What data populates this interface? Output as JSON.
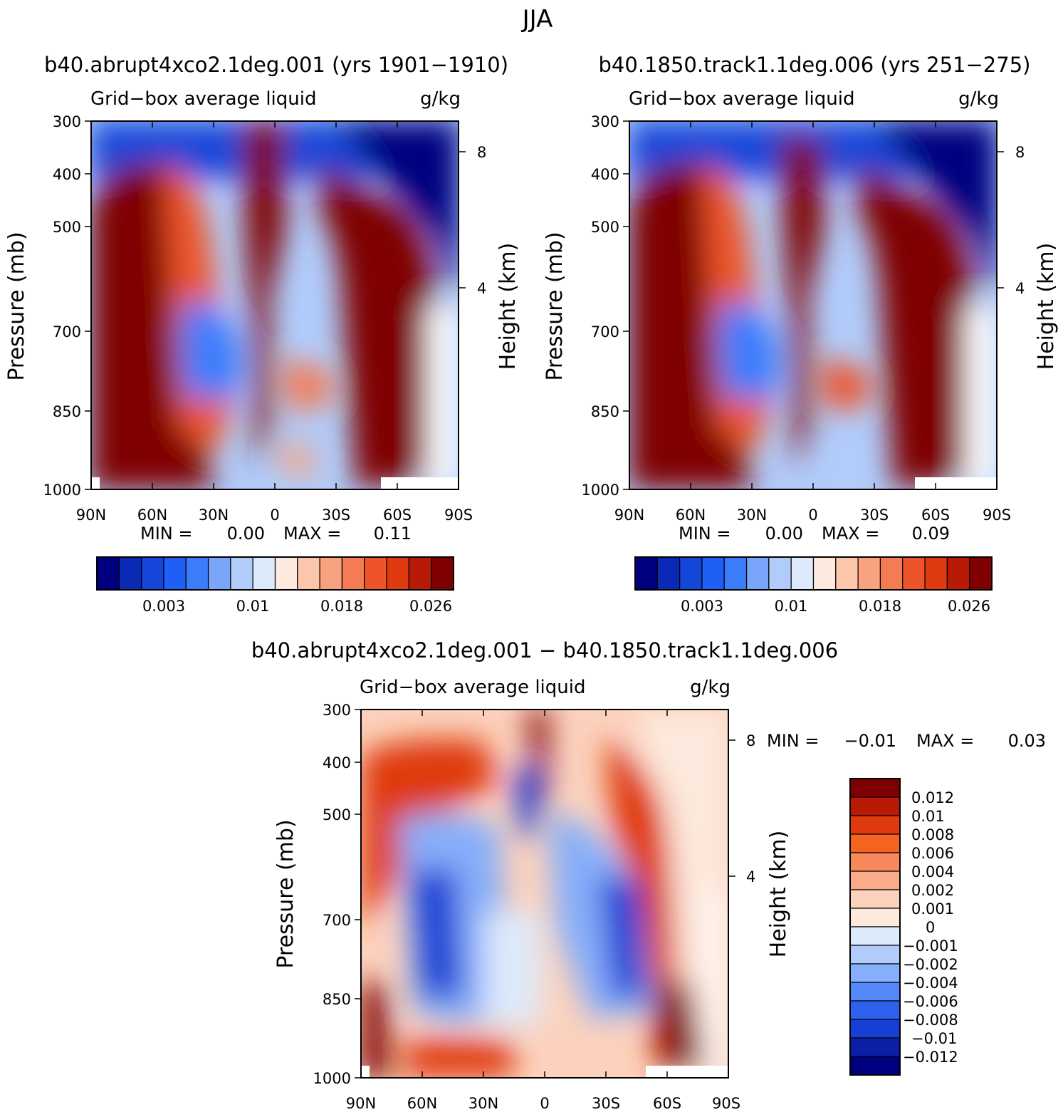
{
  "figure": {
    "title": "JJA"
  },
  "chart_data": [
    {
      "type": "heatmap",
      "panel": "top-left",
      "title": "b40.abrupt4xco2.1deg.001 (yrs 1901−1910)",
      "subtitle_left": "Grid−box average liquid",
      "subtitle_right": "g/kg",
      "xlabel": "",
      "ylabel": "Pressure (mb)",
      "ylabel_right": "Height (km)",
      "x_ticks": [
        "90N",
        "60N",
        "30N",
        "0",
        "30S",
        "60S",
        "90S"
      ],
      "y_ticks": [
        "300",
        "400",
        "500",
        "700",
        "850",
        "1000"
      ],
      "y_right_ticks": [
        "8",
        "4"
      ],
      "min_label": "MIN =",
      "min_value": "0.00",
      "max_label": "MAX =",
      "max_value": "0.11",
      "colorbar_labels": [
        "0.003",
        "0.01",
        "0.018",
        "0.026"
      ],
      "colorbar_orientation": "horizontal"
    },
    {
      "type": "heatmap",
      "panel": "top-right",
      "title": "b40.1850.track1.1deg.006 (yrs 251−275)",
      "subtitle_left": "Grid−box average liquid",
      "subtitle_right": "g/kg",
      "xlabel": "",
      "ylabel": "Pressure (mb)",
      "ylabel_right": "Height (km)",
      "x_ticks": [
        "90N",
        "60N",
        "30N",
        "0",
        "30S",
        "60S",
        "90S"
      ],
      "y_ticks": [
        "300",
        "400",
        "500",
        "700",
        "850",
        "1000"
      ],
      "y_right_ticks": [
        "8",
        "4"
      ],
      "min_label": "MIN =",
      "min_value": "0.00",
      "max_label": "MAX =",
      "max_value": "0.09",
      "colorbar_labels": [
        "0.003",
        "0.01",
        "0.018",
        "0.026"
      ],
      "colorbar_orientation": "horizontal"
    },
    {
      "type": "heatmap",
      "panel": "bottom",
      "title": "b40.abrupt4xco2.1deg.001 − b40.1850.track1.1deg.006",
      "subtitle_left": "Grid−box average liquid",
      "subtitle_right": "g/kg",
      "xlabel": "",
      "ylabel": "Pressure (mb)",
      "ylabel_right": "Height (km)",
      "x_ticks": [
        "90N",
        "60N",
        "30N",
        "0",
        "30S",
        "60S",
        "90S"
      ],
      "y_ticks": [
        "300",
        "400",
        "500",
        "700",
        "850",
        "1000"
      ],
      "y_right_ticks": [
        "8",
        "4"
      ],
      "min_label": "MIN =",
      "min_value": "−0.01",
      "max_label": "MAX =",
      "max_value": "0.03",
      "colorbar_labels": [
        "0.012",
        "0.01",
        "0.008",
        "0.006",
        "0.004",
        "0.002",
        "0.001",
        "0",
        "−0.001",
        "−0.002",
        "−0.004",
        "−0.006",
        "−0.008",
        "−0.01",
        "−0.012"
      ],
      "colorbar_orientation": "vertical"
    }
  ],
  "colors": {
    "abs_scale": [
      "#00007f",
      "#0a29b5",
      "#1346d9",
      "#1f5ff5",
      "#3c7dfb",
      "#7aa5fa",
      "#b1ccfb",
      "#ddeafc",
      "#fde9dd",
      "#fcc6ab",
      "#f9a27f",
      "#f47c54",
      "#ed5429",
      "#df3a10",
      "#b81a06",
      "#7f0000"
    ],
    "diff_scale": [
      "#7f0000",
      "#b81a06",
      "#df3a10",
      "#f4631f",
      "#f7885b",
      "#f9ab8a",
      "#fcd2bd",
      "#fde9dd",
      "#ddeafc",
      "#b1ccfb",
      "#86aefa",
      "#5489f9",
      "#2c62ee",
      "#163fd4",
      "#0a1fa6",
      "#00007f"
    ]
  }
}
